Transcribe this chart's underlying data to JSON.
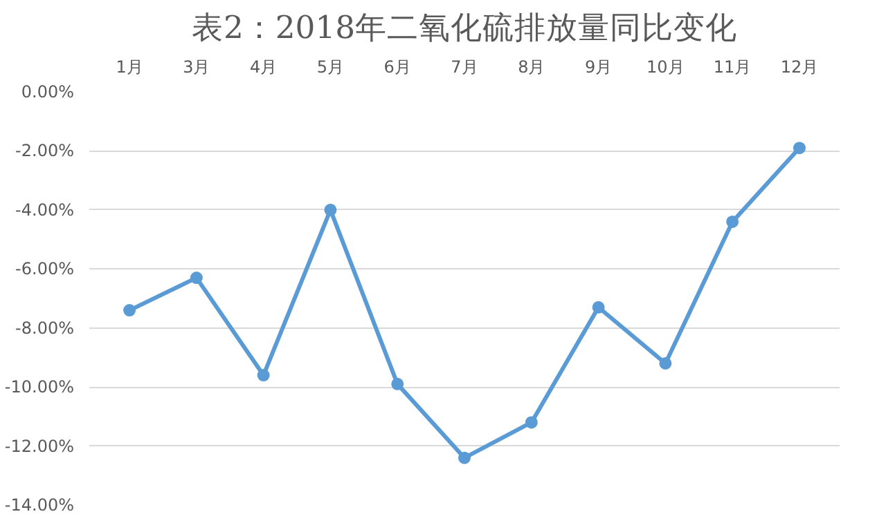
{
  "chart_data": {
    "type": "line",
    "title": "表2：2018年二氧化硫排放量同比变化",
    "categories": [
      "1月",
      "3月",
      "4月",
      "5月",
      "6月",
      "7月",
      "8月",
      "9月",
      "10月",
      "11月",
      "12月"
    ],
    "series": [
      {
        "color": "#5b9bd5",
        "values": [
          -7.4,
          -6.3,
          -9.6,
          -4.0,
          -9.9,
          -12.4,
          -11.2,
          -7.3,
          -9.2,
          -4.4,
          -1.9
        ]
      }
    ],
    "ylim": [
      -14,
      0
    ],
    "yticks": [
      {
        "value": 0,
        "label": "0.00%"
      },
      {
        "value": -2,
        "label": "-2.00%"
      },
      {
        "value": -4,
        "label": "-4.00%"
      },
      {
        "value": -6,
        "label": "-6.00%"
      },
      {
        "value": -8,
        "label": "-8.00%"
      },
      {
        "value": -10,
        "label": "-10.00%"
      },
      {
        "value": -12,
        "label": "-12.00%"
      },
      {
        "value": -14,
        "label": "-14.00%"
      }
    ],
    "grid": "y",
    "marker": "circle",
    "line_style": "solid"
  }
}
